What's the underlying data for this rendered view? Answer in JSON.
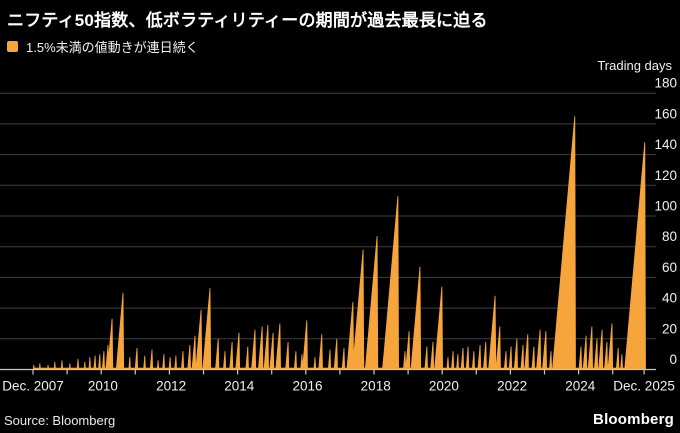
{
  "header": {
    "title": "ニフティ50指数、低ボラティリティーの期間が過去最長に迫る",
    "legend": {
      "label": "1.5%未満の値動きが連日続く",
      "swatch_color": "#F5A53C"
    }
  },
  "chart_data": {
    "type": "area",
    "title": "ニフティ50指数、低ボラティリティーの期間が過去最長に迫る",
    "series_name": "1.5%未満の値動きが連日続く",
    "xlabel": "",
    "ylabel": "Trading days",
    "ylim": [
      0,
      180
    ],
    "yticks": [
      0,
      20,
      40,
      60,
      80,
      100,
      120,
      140,
      160,
      180
    ],
    "x_range_years": [
      2008.0,
      2025.92
    ],
    "x_tick_years": [
      2008,
      2009,
      2010,
      2011,
      2012,
      2013,
      2014,
      2015,
      2016,
      2017,
      2018,
      2019,
      2020,
      2021,
      2022,
      2023,
      2024,
      2025,
      2025.92
    ],
    "x_labels": [
      {
        "label": "Dec. 2007",
        "year": 2008.0
      },
      {
        "label": "2010",
        "year": 2010.05
      },
      {
        "label": "2012",
        "year": 2012.05
      },
      {
        "label": "2014",
        "year": 2014.05
      },
      {
        "label": "2016",
        "year": 2016.05
      },
      {
        "label": "2018",
        "year": 2018.05
      },
      {
        "label": "2020",
        "year": 2020.05
      },
      {
        "label": "2022",
        "year": 2022.05
      },
      {
        "label": "2024",
        "year": 2024.05
      },
      {
        "label": "Dec. 2025",
        "year": 2025.92
      }
    ],
    "grid": true,
    "legend_position": "top-left",
    "streaks_note": "each point = [calendar year when streak ended, consecutive trading days with moves under 1.5%]; rendered as sawtooth: linear rise, instant reset",
    "streaks": [
      [
        2008.02,
        3
      ],
      [
        2008.2,
        4
      ],
      [
        2008.44,
        3
      ],
      [
        2008.64,
        5
      ],
      [
        2008.85,
        6
      ],
      [
        2009.08,
        4
      ],
      [
        2009.32,
        7
      ],
      [
        2009.52,
        5
      ],
      [
        2009.67,
        8
      ],
      [
        2009.82,
        9
      ],
      [
        2009.96,
        10
      ],
      [
        2010.08,
        12
      ],
      [
        2010.2,
        16
      ],
      [
        2010.32,
        33
      ],
      [
        2010.64,
        50
      ],
      [
        2010.84,
        8
      ],
      [
        2011.05,
        14
      ],
      [
        2011.28,
        9
      ],
      [
        2011.49,
        13
      ],
      [
        2011.67,
        6
      ],
      [
        2011.84,
        10
      ],
      [
        2012.02,
        8
      ],
      [
        2012.19,
        9
      ],
      [
        2012.4,
        12
      ],
      [
        2012.6,
        16
      ],
      [
        2012.75,
        22
      ],
      [
        2012.93,
        39
      ],
      [
        2013.19,
        53
      ],
      [
        2013.43,
        20
      ],
      [
        2013.63,
        12
      ],
      [
        2013.84,
        18
      ],
      [
        2014.04,
        24
      ],
      [
        2014.3,
        15
      ],
      [
        2014.51,
        26
      ],
      [
        2014.72,
        28
      ],
      [
        2014.89,
        29
      ],
      [
        2015.04,
        24
      ],
      [
        2015.24,
        30
      ],
      [
        2015.48,
        18
      ],
      [
        2015.71,
        12
      ],
      [
        2015.89,
        10
      ],
      [
        2016.03,
        32
      ],
      [
        2016.27,
        8
      ],
      [
        2016.47,
        23
      ],
      [
        2016.71,
        13
      ],
      [
        2016.91,
        20
      ],
      [
        2017.12,
        14
      ],
      [
        2017.38,
        44
      ],
      [
        2017.68,
        78
      ],
      [
        2017.91,
        12
      ],
      [
        2018.09,
        87
      ],
      [
        2018.29,
        10
      ],
      [
        2018.47,
        20
      ],
      [
        2018.7,
        113
      ],
      [
        2018.91,
        12
      ],
      [
        2019.03,
        25
      ],
      [
        2019.2,
        10
      ],
      [
        2019.35,
        67
      ],
      [
        2019.55,
        15
      ],
      [
        2019.73,
        18
      ],
      [
        2019.99,
        54
      ],
      [
        2020.17,
        8
      ],
      [
        2020.32,
        12
      ],
      [
        2020.46,
        10
      ],
      [
        2020.61,
        14
      ],
      [
        2020.76,
        15
      ],
      [
        2020.93,
        12
      ],
      [
        2021.11,
        16
      ],
      [
        2021.28,
        18
      ],
      [
        2021.55,
        48
      ],
      [
        2021.69,
        28
      ],
      [
        2021.87,
        12
      ],
      [
        2022.02,
        15
      ],
      [
        2022.19,
        20
      ],
      [
        2022.37,
        16
      ],
      [
        2022.51,
        23
      ],
      [
        2022.69,
        15
      ],
      [
        2022.87,
        26
      ],
      [
        2023.04,
        25
      ],
      [
        2023.19,
        12
      ],
      [
        2023.89,
        165
      ],
      [
        2024.07,
        15
      ],
      [
        2024.22,
        22
      ],
      [
        2024.39,
        28
      ],
      [
        2024.54,
        20
      ],
      [
        2024.69,
        26
      ],
      [
        2024.83,
        18
      ],
      [
        2024.98,
        30
      ],
      [
        2025.16,
        14
      ],
      [
        2025.27,
        10
      ],
      [
        2025.94,
        148
      ]
    ],
    "colors": {
      "series": "#F5A53C",
      "background": "#000000",
      "gridline": "#3f3f3f",
      "axis": "#c7c7c5",
      "tick_text": "#f0f0ee"
    }
  },
  "footer": {
    "source": "Source: Bloomberg",
    "logo": "Bloomberg"
  }
}
